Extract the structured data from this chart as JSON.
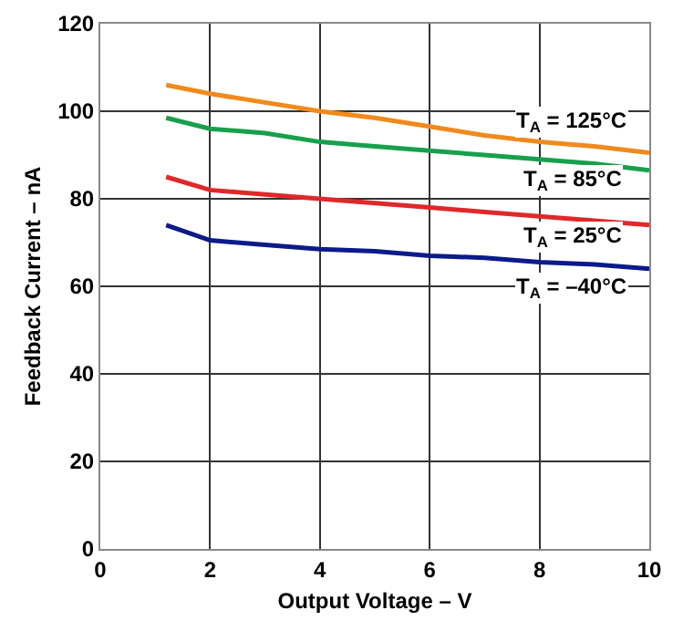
{
  "chart_data": {
    "type": "line",
    "xlabel": "Output Voltage – V",
    "ylabel": "Feedback Current – nA",
    "x": [
      1.2,
      2,
      3,
      4,
      5,
      6,
      7,
      8,
      9,
      10
    ],
    "series": [
      {
        "name": "T$_{A}$ = 125°C",
        "color": "#f08a1c",
        "values": [
          106,
          104,
          102,
          100,
          98.5,
          96.5,
          94.5,
          93,
          92,
          90.5
        ]
      },
      {
        "name": "T$_{A}$ = 85°C",
        "color": "#17a04c",
        "values": [
          98.5,
          96,
          95,
          93,
          92,
          91,
          90,
          89,
          88,
          86.5
        ]
      },
      {
        "name": "T$_{A}$ = 25°C",
        "color": "#e0282a",
        "values": [
          85,
          82,
          81,
          80,
          79,
          78,
          77,
          76,
          75,
          74
        ]
      },
      {
        "name": "T$_{A}$ = –40°C",
        "color": "#0c1a8a",
        "values": [
          74,
          70.5,
          69.5,
          68.5,
          68,
          67,
          66.5,
          65.5,
          65,
          64
        ]
      }
    ],
    "xlim": [
      0,
      10
    ],
    "xticks": [
      0,
      2,
      4,
      6,
      8,
      10
    ],
    "ylim": [
      0,
      120
    ],
    "yticks": [
      0,
      20,
      40,
      60,
      80,
      100,
      120
    ],
    "grid": true,
    "legend": false,
    "marker": "none",
    "line_style": "solid"
  }
}
